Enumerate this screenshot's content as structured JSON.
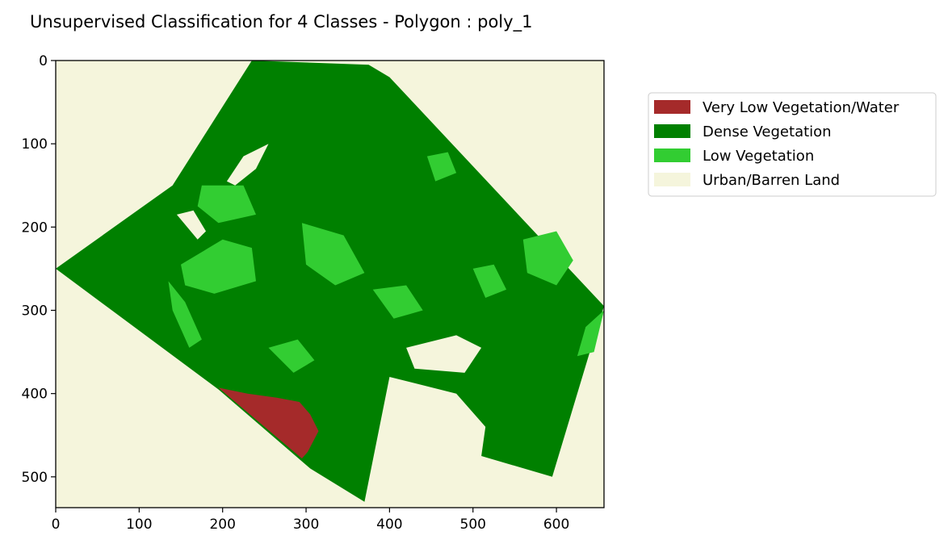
{
  "chart_data": {
    "type": "heatmap",
    "title": "Unsupervised Classification for 4 Classes - Polygon : poly_1",
    "xlabel": "",
    "ylabel": "",
    "xlim": [
      0,
      657
    ],
    "ylim": [
      537,
      0
    ],
    "x_ticks": [
      0,
      100,
      200,
      300,
      400,
      500,
      600
    ],
    "y_ticks": [
      0,
      100,
      200,
      300,
      400,
      500
    ],
    "legend_position": "outside-right",
    "grid": false,
    "classes": [
      {
        "name": "Very Low Vegetation/Water",
        "color": "#a52a2a"
      },
      {
        "name": "Dense Vegetation",
        "color": "#008000"
      },
      {
        "name": "Low Vegetation",
        "color": "#32cd32"
      },
      {
        "name": "Urban/Barren Land",
        "color": "#f5f5dc"
      }
    ],
    "background_class": "Urban/Barren Land",
    "regions": [
      {
        "class": "Dense Vegetation",
        "shape": "polygon",
        "points": [
          [
            235,
            0
          ],
          [
            375,
            5
          ],
          [
            400,
            20
          ],
          [
            657,
            295
          ],
          [
            640,
            350
          ],
          [
            595,
            500
          ],
          [
            510,
            475
          ],
          [
            515,
            440
          ],
          [
            480,
            400
          ],
          [
            400,
            380
          ],
          [
            370,
            530
          ],
          [
            305,
            490
          ],
          [
            195,
            395
          ],
          [
            0,
            250
          ],
          [
            140,
            150
          ]
        ]
      },
      {
        "class": "Very Low Vegetation/Water",
        "shape": "polygon",
        "points": [
          [
            195,
            393
          ],
          [
            230,
            400
          ],
          [
            265,
            405
          ],
          [
            292,
            410
          ],
          [
            305,
            425
          ],
          [
            315,
            445
          ],
          [
            302,
            470
          ],
          [
            295,
            478
          ]
        ]
      },
      {
        "class": "Urban/Barren Land",
        "shape": "polygon",
        "points": [
          [
            205,
            145
          ],
          [
            225,
            115
          ],
          [
            255,
            100
          ],
          [
            240,
            130
          ],
          [
            215,
            150
          ]
        ]
      },
      {
        "class": "Urban/Barren Land",
        "shape": "polygon",
        "points": [
          [
            145,
            185
          ],
          [
            165,
            180
          ],
          [
            180,
            205
          ],
          [
            170,
            215
          ]
        ]
      },
      {
        "class": "Urban/Barren Land",
        "shape": "polygon",
        "points": [
          [
            420,
            345
          ],
          [
            480,
            330
          ],
          [
            510,
            345
          ],
          [
            490,
            375
          ],
          [
            430,
            370
          ]
        ]
      },
      {
        "class": "Low Vegetation",
        "shape": "polygon",
        "points": [
          [
            150,
            245
          ],
          [
            200,
            215
          ],
          [
            235,
            225
          ],
          [
            240,
            265
          ],
          [
            190,
            280
          ],
          [
            155,
            270
          ]
        ]
      },
      {
        "class": "Low Vegetation",
        "shape": "polygon",
        "points": [
          [
            295,
            195
          ],
          [
            345,
            210
          ],
          [
            370,
            255
          ],
          [
            335,
            270
          ],
          [
            300,
            245
          ]
        ]
      },
      {
        "class": "Low Vegetation",
        "shape": "polygon",
        "points": [
          [
            175,
            150
          ],
          [
            225,
            150
          ],
          [
            240,
            185
          ],
          [
            195,
            195
          ],
          [
            170,
            175
          ]
        ]
      },
      {
        "class": "Low Vegetation",
        "shape": "polygon",
        "points": [
          [
            135,
            265
          ],
          [
            155,
            290
          ],
          [
            175,
            335
          ],
          [
            160,
            345
          ],
          [
            140,
            300
          ]
        ]
      },
      {
        "class": "Low Vegetation",
        "shape": "polygon",
        "points": [
          [
            560,
            215
          ],
          [
            600,
            205
          ],
          [
            620,
            240
          ],
          [
            600,
            270
          ],
          [
            565,
            255
          ]
        ]
      },
      {
        "class": "Low Vegetation",
        "shape": "polygon",
        "points": [
          [
            635,
            320
          ],
          [
            657,
            300
          ],
          [
            645,
            350
          ],
          [
            625,
            355
          ]
        ]
      },
      {
        "class": "Low Vegetation",
        "shape": "polygon",
        "points": [
          [
            500,
            250
          ],
          [
            525,
            245
          ],
          [
            540,
            275
          ],
          [
            515,
            285
          ]
        ]
      },
      {
        "class": "Low Vegetation",
        "shape": "polygon",
        "points": [
          [
            380,
            275
          ],
          [
            420,
            270
          ],
          [
            440,
            300
          ],
          [
            405,
            310
          ]
        ]
      },
      {
        "class": "Low Vegetation",
        "shape": "polygon",
        "points": [
          [
            255,
            345
          ],
          [
            290,
            335
          ],
          [
            310,
            360
          ],
          [
            285,
            375
          ]
        ]
      },
      {
        "class": "Low Vegetation",
        "shape": "polygon",
        "points": [
          [
            445,
            115
          ],
          [
            470,
            110
          ],
          [
            480,
            135
          ],
          [
            455,
            145
          ]
        ]
      }
    ]
  }
}
